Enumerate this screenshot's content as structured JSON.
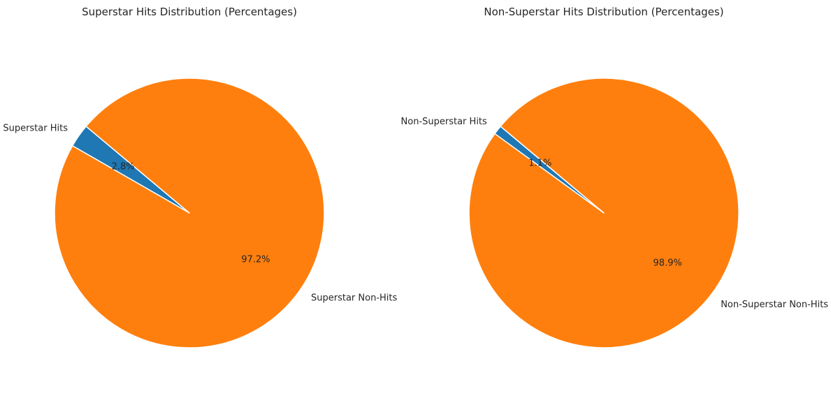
{
  "chart_data": [
    {
      "type": "pie",
      "title": "Superstar Hits Distribution (Percentages)",
      "labels": [
        "Superstar Hits",
        "Superstar Non-Hits"
      ],
      "values": [
        2.8,
        97.2
      ],
      "pct_labels": [
        "2.8%",
        "97.2%"
      ],
      "colors": [
        "#1f77b4",
        "#ff7f0e"
      ],
      "start_angle": 140
    },
    {
      "type": "pie",
      "title": "Non-Superstar Hits Distribution (Percentages)",
      "labels": [
        "Non-Superstar Hits",
        "Non-Superstar Non-Hits"
      ],
      "values": [
        1.1,
        98.9
      ],
      "pct_labels": [
        "1.1%",
        "98.9%"
      ],
      "colors": [
        "#1f77b4",
        "#ff7f0e"
      ],
      "start_angle": 140
    }
  ]
}
